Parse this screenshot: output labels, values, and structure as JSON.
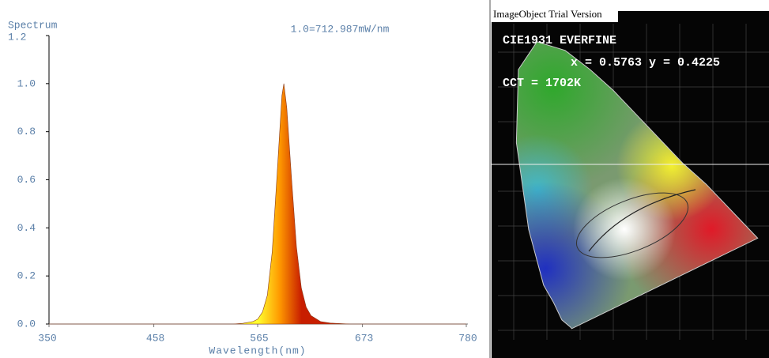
{
  "chart_data": {
    "type": "area",
    "title": "Spectrum",
    "annotation": "1.0=712.987mW/nm",
    "xlabel": "Wavelength(nm)",
    "x": [
      350,
      540,
      550,
      560,
      565,
      570,
      575,
      580,
      585,
      590,
      592,
      595,
      600,
      605,
      610,
      615,
      620,
      630,
      640,
      660,
      780
    ],
    "values": [
      0,
      0,
      0.003,
      0.01,
      0.02,
      0.05,
      0.12,
      0.3,
      0.62,
      0.95,
      1.0,
      0.9,
      0.6,
      0.32,
      0.15,
      0.07,
      0.035,
      0.01,
      0.004,
      0,
      0
    ],
    "gradient": [
      "#ffff30",
      "#ff9a00",
      "#c81e00"
    ],
    "xlim": [
      350,
      780
    ],
    "xticks": [
      350,
      458,
      565,
      673,
      780
    ],
    "ylim": [
      0,
      1.2
    ],
    "yticks": [
      {
        "value": 0,
        "label": "0.0"
      },
      {
        "value": 0.2,
        "label": "0.2"
      },
      {
        "value": 0.4,
        "label": "0.4"
      },
      {
        "value": 0.6,
        "label": "0.6"
      },
      {
        "value": 0.8,
        "label": "0.8"
      },
      {
        "value": 1.0,
        "label": "1.0"
      },
      {
        "value": 1.2,
        "label": "1.2"
      }
    ]
  },
  "cie_panel": {
    "watermark": "ImageObject Trial Version",
    "title": "CIE1931 EVERFINE",
    "coordinates": "x = 0.5763 y = 0.4225",
    "cct": "CCT = 1702K"
  }
}
